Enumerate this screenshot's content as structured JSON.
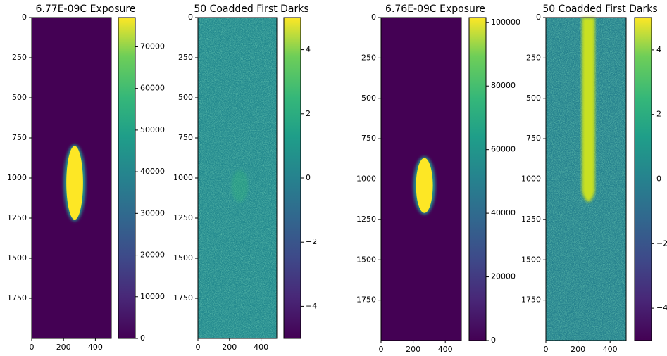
{
  "chart_data": [
    {
      "type": "image",
      "title": "6.77E-09C Exposure",
      "colormap": "viridis",
      "background": "#440154",
      "xlim": [
        0,
        500
      ],
      "xticks": [
        0,
        200,
        400
      ],
      "ylim": [
        2000,
        0
      ],
      "yticks": [
        0,
        250,
        500,
        750,
        1000,
        1250,
        1500,
        1750
      ],
      "clim": [
        0,
        77000
      ],
      "cticks": [
        0,
        10000,
        20000,
        30000,
        40000,
        50000,
        60000,
        70000
      ]
    },
    {
      "type": "image",
      "title": "50 Coadded First Darks",
      "colormap": "viridis",
      "background": "#23898e",
      "xlim": [
        0,
        500
      ],
      "xticks": [
        0,
        200,
        400
      ],
      "ylim": [
        2000,
        0
      ],
      "yticks": [
        0,
        250,
        500,
        750,
        1000,
        1250,
        1500,
        1750
      ],
      "clim": [
        -5,
        5
      ],
      "cticks": [
        {
          "value": -4,
          "label": "−4"
        },
        {
          "value": -2,
          "label": "−2"
        },
        0,
        2,
        4
      ]
    },
    {
      "type": "image",
      "title": "6.76E-09C Exposure",
      "colormap": "viridis",
      "background": "#440154",
      "xlim": [
        0,
        500
      ],
      "xticks": [
        0,
        200,
        400
      ],
      "ylim": [
        2000,
        0
      ],
      "yticks": [
        0,
        250,
        500,
        750,
        1000,
        1250,
        1500,
        1750
      ],
      "clim": [
        0,
        101500
      ],
      "cticks": [
        0,
        20000,
        40000,
        60000,
        80000,
        100000
      ]
    },
    {
      "type": "image",
      "title": "50 Coadded First Darks",
      "colormap": "viridis",
      "background": "#26828e",
      "xlim": [
        0,
        500
      ],
      "xticks": [
        0,
        200,
        400
      ],
      "ylim": [
        2000,
        0
      ],
      "yticks": [
        0,
        250,
        500,
        750,
        1000,
        1250,
        1500,
        1750
      ],
      "clim": [
        -5,
        5
      ],
      "cticks": [
        {
          "value": -4,
          "label": "−4"
        },
        {
          "value": -2,
          "label": "−2"
        },
        0,
        2,
        4
      ]
    }
  ]
}
